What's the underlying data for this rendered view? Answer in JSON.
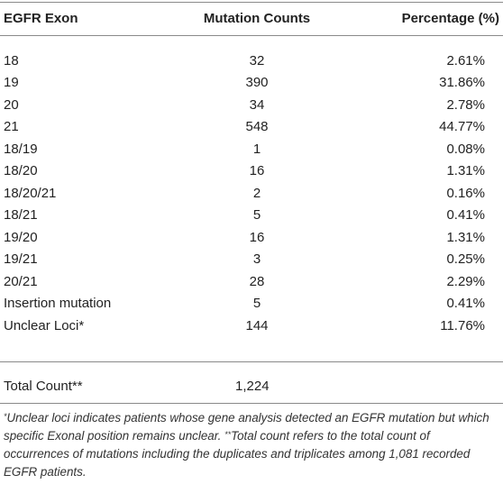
{
  "table": {
    "headers": {
      "exon": "EGFR Exon",
      "counts": "Mutation Counts",
      "percentage": "Percentage (%)"
    },
    "rows": [
      {
        "exon": "18",
        "counts": "32",
        "percentage": "2.61%"
      },
      {
        "exon": "19",
        "counts": "390",
        "percentage": "31.86%"
      },
      {
        "exon": "20",
        "counts": "34",
        "percentage": "2.78%"
      },
      {
        "exon": "21",
        "counts": "548",
        "percentage": "44.77%"
      },
      {
        "exon": "18/19",
        "counts": "1",
        "percentage": "0.08%"
      },
      {
        "exon": "18/20",
        "counts": "16",
        "percentage": "1.31%"
      },
      {
        "exon": "18/20/21",
        "counts": "2",
        "percentage": "0.16%"
      },
      {
        "exon": "18/21",
        "counts": "5",
        "percentage": "0.41%"
      },
      {
        "exon": "19/20",
        "counts": "16",
        "percentage": "1.31%"
      },
      {
        "exon": "19/21",
        "counts": "3",
        "percentage": "0.25%"
      },
      {
        "exon": "20/21",
        "counts": "28",
        "percentage": "2.29%"
      },
      {
        "exon": "Insertion mutation",
        "counts": "5",
        "percentage": "0.41%"
      },
      {
        "exon": "Unclear Loci*",
        "counts": "144",
        "percentage": "11.76%"
      }
    ],
    "total": {
      "label": "Total Count**",
      "counts": "1,224"
    }
  },
  "footnote": {
    "marker1": "*",
    "text1": "Unclear loci indicates patients whose gene analysis detected an EGFR mutation but which specific Exonal position remains unclear. ",
    "marker2": "**",
    "text2": "Total count refers to the total count of occurrences of mutations including the duplicates and triplicates among 1,081 recorded EGFR patients."
  }
}
